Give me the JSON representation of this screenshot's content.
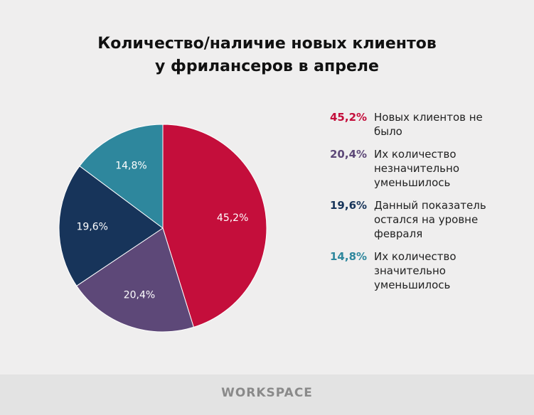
{
  "chart_data": {
    "type": "pie",
    "title": [
      "Количество/наличие новых клиентов",
      "у фрилансеров в апреле"
    ],
    "slices": [
      {
        "label": "45,2%",
        "value": 45.2,
        "legend": "Новых клиентов не было",
        "color": "#c40e3b"
      },
      {
        "label": "20,4%",
        "value": 20.4,
        "legend": "Их количество незначительно уменьшилось",
        "color": "#5d4878"
      },
      {
        "label": "19,6%",
        "value": 19.6,
        "legend": "Данный показатель остался на уровне февраля",
        "color": "#17345a"
      },
      {
        "label": "14,8%",
        "value": 14.8,
        "legend": "Их количество значительно уменьшилось",
        "color": "#2e879d"
      }
    ],
    "start": "top",
    "direction": "clockwise",
    "legend_position": "right"
  },
  "footer": {
    "logo": "WORKSPACE"
  }
}
